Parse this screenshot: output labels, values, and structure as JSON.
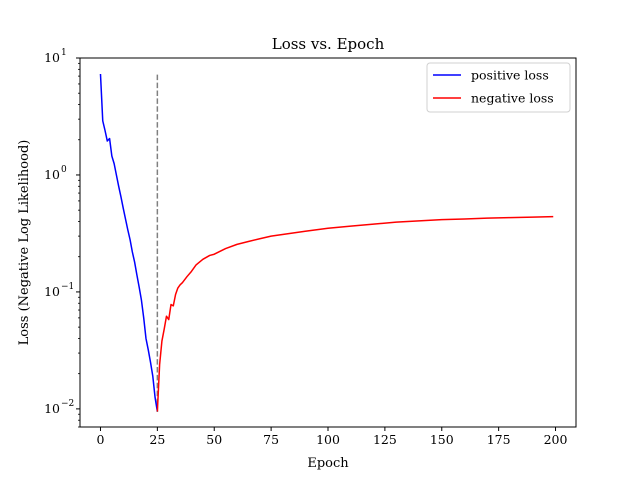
{
  "chart_data": {
    "type": "line",
    "title": "Loss vs. Epoch",
    "xlabel": "Epoch",
    "ylabel": "Loss (Negative Log Likelihood)",
    "xlim": [
      -9,
      209
    ],
    "ylim": [
      0.007,
      10
    ],
    "yscale": "log",
    "grid": false,
    "legend_placement": "top-right",
    "xticks": [
      {
        "value": 0,
        "label": "0"
      },
      {
        "value": 25,
        "label": "25"
      },
      {
        "value": 50,
        "label": "50"
      },
      {
        "value": 75,
        "label": "75"
      },
      {
        "value": 100,
        "label": "100"
      },
      {
        "value": 125,
        "label": "125"
      },
      {
        "value": 150,
        "label": "150"
      },
      {
        "value": 175,
        "label": "175"
      },
      {
        "value": 200,
        "label": "200"
      }
    ],
    "yticks": [
      {
        "value": 0.01,
        "base": "10",
        "exp": "−2"
      },
      {
        "value": 0.1,
        "base": "10",
        "exp": "−1"
      },
      {
        "value": 1,
        "base": "10",
        "exp": "0"
      },
      {
        "value": 10,
        "base": "10",
        "exp": "1"
      }
    ],
    "vline": {
      "x": 25,
      "y": [
        0.009,
        7.2
      ],
      "color": "#808080",
      "style": "dashed"
    },
    "series": [
      {
        "name": "positive loss",
        "color": "#0000ff",
        "x": [
          0,
          1,
          2,
          3,
          4,
          5,
          6,
          7,
          8,
          9,
          10,
          11,
          12,
          13,
          14,
          15,
          16,
          17,
          18,
          19,
          20,
          21,
          22,
          23,
          24,
          25
        ],
        "y": [
          7.3,
          2.9,
          2.4,
          1.95,
          2.05,
          1.45,
          1.25,
          1.0,
          0.8,
          0.65,
          0.52,
          0.42,
          0.34,
          0.28,
          0.22,
          0.18,
          0.14,
          0.11,
          0.085,
          0.06,
          0.04,
          0.032,
          0.025,
          0.019,
          0.0125,
          0.0095
        ]
      },
      {
        "name": "negative loss",
        "color": "#ff0000",
        "x": [
          25,
          26,
          27,
          28,
          29,
          30,
          31,
          32,
          33,
          34,
          35,
          36,
          38,
          40,
          42,
          45,
          48,
          50,
          55,
          60,
          65,
          70,
          75,
          80,
          85,
          90,
          95,
          100,
          110,
          120,
          130,
          140,
          150,
          160,
          170,
          180,
          190,
          199
        ],
        "y": [
          0.0095,
          0.024,
          0.038,
          0.048,
          0.062,
          0.058,
          0.078,
          0.076,
          0.095,
          0.108,
          0.115,
          0.12,
          0.135,
          0.15,
          0.17,
          0.19,
          0.205,
          0.21,
          0.235,
          0.255,
          0.27,
          0.285,
          0.3,
          0.31,
          0.32,
          0.33,
          0.34,
          0.35,
          0.365,
          0.38,
          0.395,
          0.405,
          0.415,
          0.42,
          0.428,
          0.432,
          0.436,
          0.44
        ]
      }
    ]
  }
}
